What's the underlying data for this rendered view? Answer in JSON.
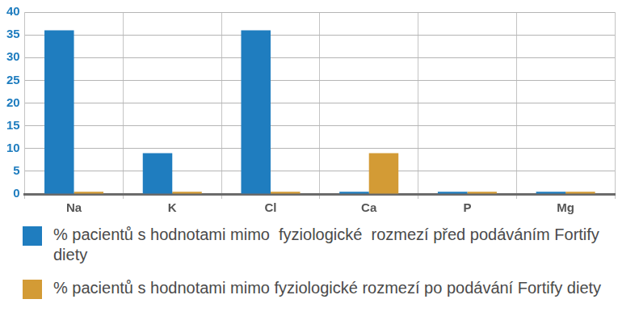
{
  "chart_data": {
    "type": "bar",
    "categories": [
      "Na",
      "K",
      "Cl",
      "Ca",
      "P",
      "Mg"
    ],
    "series": [
      {
        "name": "% pacientů s hodnotami mimo  fyziologické  rozmezí před podáváním Fortify diety",
        "color": "#1f7dbf",
        "values": [
          36,
          9,
          36,
          0.5,
          0.5,
          0.5
        ]
      },
      {
        "name": "% pacientů s hodnotami mimo fyziologické rozmezí po podávání Fortify diety",
        "color": "#d39b35",
        "values": [
          0.5,
          0.5,
          0.5,
          9,
          0.5,
          0.5
        ]
      }
    ],
    "ylim": [
      0,
      40
    ],
    "yticks": [
      0,
      5,
      10,
      15,
      20,
      25,
      30,
      35,
      40
    ],
    "grid": true,
    "legend": "bottom"
  }
}
